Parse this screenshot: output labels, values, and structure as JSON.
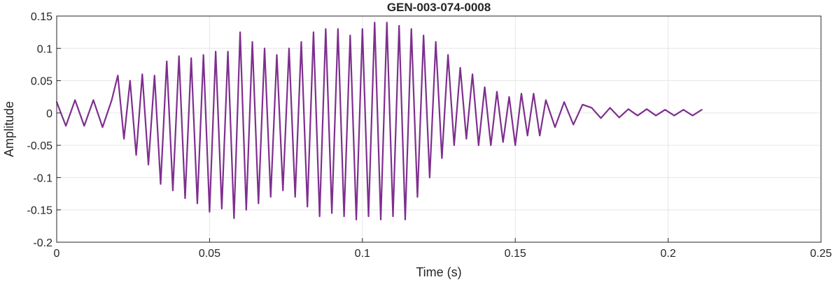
{
  "chart_data": {
    "type": "line",
    "title": "GEN-003-074-0008",
    "xlabel": "Time (s)",
    "ylabel": "Amplitude",
    "xlim": [
      0,
      0.25
    ],
    "ylim": [
      -0.2,
      0.15
    ],
    "grid": true,
    "legend": "none",
    "line_color": "#7E2F8E",
    "x_ticks": [
      0,
      0.05,
      0.1,
      0.15,
      0.2,
      0.25
    ],
    "x_tick_labels": [
      "0",
      "0.05",
      "0.1",
      "0.15",
      "0.2",
      "0.25"
    ],
    "y_ticks": [
      0.15,
      0.1,
      0.05,
      0,
      -0.05,
      -0.1,
      -0.15,
      -0.2
    ],
    "y_tick_labels": [
      "0.15",
      "0.1",
      "0.05",
      "0",
      "-0.05",
      "-0.1",
      "-0.15",
      "-0.2"
    ],
    "series": [
      {
        "x": [
          0,
          0.003,
          0.006,
          0.009,
          0.012,
          0.015,
          0.018,
          0.02,
          0.022,
          0.024,
          0.026,
          0.028,
          0.03,
          0.032,
          0.034,
          0.036,
          0.038,
          0.04,
          0.042,
          0.044,
          0.046,
          0.048,
          0.05,
          0.052,
          0.054,
          0.056,
          0.058,
          0.06,
          0.062,
          0.064,
          0.066,
          0.068,
          0.07,
          0.072,
          0.074,
          0.076,
          0.078,
          0.08,
          0.082,
          0.084,
          0.086,
          0.088,
          0.09,
          0.092,
          0.094,
          0.096,
          0.098,
          0.1,
          0.102,
          0.104,
          0.106,
          0.108,
          0.11,
          0.112,
          0.114,
          0.116,
          0.118,
          0.12,
          0.122,
          0.124,
          0.126,
          0.128,
          0.13,
          0.132,
          0.134,
          0.136,
          0.138,
          0.14,
          0.142,
          0.144,
          0.146,
          0.148,
          0.15,
          0.152,
          0.154,
          0.156,
          0.158,
          0.16,
          0.163,
          0.166,
          0.169,
          0.172,
          0.175,
          0.178,
          0.181,
          0.184,
          0.187,
          0.19,
          0.193,
          0.196,
          0.199,
          0.202,
          0.205,
          0.208,
          0.211
        ],
        "y": [
          0.017,
          -0.02,
          0.02,
          -0.02,
          0.02,
          -0.022,
          0.02,
          0.058,
          -0.04,
          0.05,
          -0.065,
          0.06,
          -0.08,
          0.058,
          -0.11,
          0.08,
          -0.12,
          0.088,
          -0.132,
          0.085,
          -0.14,
          0.09,
          -0.153,
          0.095,
          -0.148,
          0.095,
          -0.163,
          0.125,
          -0.15,
          0.11,
          -0.14,
          0.1,
          -0.13,
          0.09,
          -0.12,
          0.1,
          -0.13,
          0.11,
          -0.145,
          0.125,
          -0.16,
          0.13,
          -0.155,
          0.13,
          -0.16,
          0.12,
          -0.165,
          0.13,
          -0.16,
          0.14,
          -0.165,
          0.14,
          -0.16,
          0.135,
          -0.165,
          0.13,
          -0.13,
          0.12,
          -0.1,
          0.11,
          -0.07,
          0.09,
          -0.05,
          0.07,
          -0.04,
          0.06,
          -0.05,
          0.04,
          -0.05,
          0.033,
          -0.045,
          0.025,
          -0.05,
          0.03,
          -0.035,
          0.03,
          -0.035,
          0.02,
          -0.022,
          0.017,
          -0.018,
          0.013,
          0.008,
          -0.008,
          0.008,
          -0.007,
          0.006,
          -0.004,
          0.006,
          -0.004,
          0.005,
          -0.004,
          0.005,
          -0.004,
          0.005
        ]
      }
    ]
  }
}
